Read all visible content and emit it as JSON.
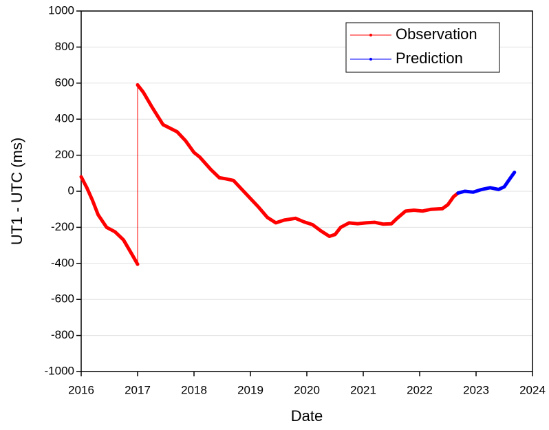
{
  "chart_data": {
    "type": "line",
    "xlabel": "Date",
    "ylabel": "UT1 - UTC (ms)",
    "xlim": [
      2016,
      2024
    ],
    "xticks": [
      2016,
      2017,
      2018,
      2019,
      2020,
      2021,
      2022,
      2023,
      2024
    ],
    "ylim": [
      -1000,
      1000
    ],
    "yticks": [
      -1000,
      -800,
      -600,
      -400,
      -200,
      0,
      200,
      400,
      600,
      800,
      1000
    ],
    "grid": true,
    "legend": "upper right",
    "series": [
      {
        "name": "Observation",
        "color": "#ff0000",
        "x": [
          2016.0,
          2016.1,
          2016.2,
          2016.3,
          2016.45,
          2016.6,
          2016.75,
          2016.9,
          2017.0,
          2017.0,
          2017.1,
          2017.25,
          2017.45,
          2017.7,
          2017.85,
          2018.0,
          2018.1,
          2018.3,
          2018.45,
          2018.55,
          2018.7,
          2018.85,
          2019.0,
          2019.15,
          2019.3,
          2019.45,
          2019.6,
          2019.8,
          2019.95,
          2020.1,
          2020.25,
          2020.4,
          2020.5,
          2020.6,
          2020.75,
          2020.9,
          2021.05,
          2021.2,
          2021.35,
          2021.5,
          2021.6,
          2021.75,
          2021.9,
          2022.05,
          2022.2,
          2022.4,
          2022.5,
          2022.6,
          2022.68
        ],
        "values": [
          80,
          20,
          -50,
          -130,
          -200,
          -225,
          -270,
          -350,
          -405,
          590,
          550,
          470,
          370,
          330,
          280,
          215,
          190,
          120,
          75,
          70,
          60,
          10,
          -40,
          -90,
          -145,
          -175,
          -160,
          -150,
          -170,
          -185,
          -220,
          -250,
          -240,
          -200,
          -175,
          -180,
          -175,
          -172,
          -182,
          -180,
          -150,
          -110,
          -105,
          -110,
          -100,
          -97,
          -75,
          -30,
          -10
        ]
      },
      {
        "name": "Prediction",
        "color": "#0000ff",
        "x": [
          2022.68,
          2022.8,
          2022.95,
          2023.1,
          2023.25,
          2023.4,
          2023.5,
          2023.6,
          2023.68
        ],
        "values": [
          -10,
          0,
          -5,
          10,
          20,
          10,
          25,
          70,
          105
        ]
      }
    ]
  }
}
